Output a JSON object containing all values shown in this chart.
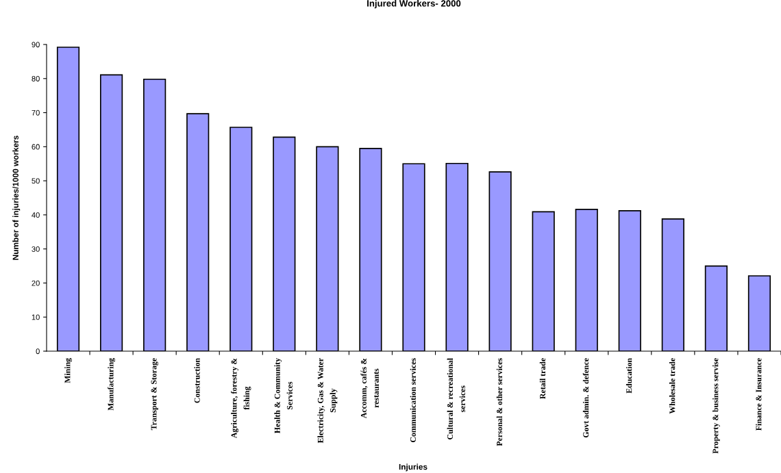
{
  "chart_data": {
    "type": "bar",
    "title": "Injured Workers- 2000",
    "xlabel": "Injuries",
    "ylabel": "Number of injuries/1000 workers",
    "categories": [
      "Mining",
      "Manufacturing",
      "Transport & Storage",
      "Construction",
      "Agriculture, forestry &\nfishing",
      "Health & Community\nServices",
      "Electricity, Gas & Water\nSupply",
      "Accomm, cafés &\nrestaurants",
      "Communication services",
      "Cultural & recreational\nservices",
      "Personal & other services",
      "Retail trade",
      "Govt admin. & defence",
      "Education",
      "Wholesale trade",
      "Property & business servise",
      "Finance & Insurance"
    ],
    "values": [
      89.2,
      81.1,
      79.8,
      69.7,
      65.7,
      62.8,
      60.0,
      59.5,
      55.0,
      55.1,
      52.6,
      40.9,
      41.6,
      41.2,
      38.8,
      25.0,
      22.1
    ],
    "color": "#9999ff",
    "ylim": [
      0,
      90
    ],
    "yticks": [
      0,
      10,
      20,
      30,
      40,
      50,
      60,
      70,
      80,
      90
    ],
    "grid": false,
    "legend": false
  }
}
